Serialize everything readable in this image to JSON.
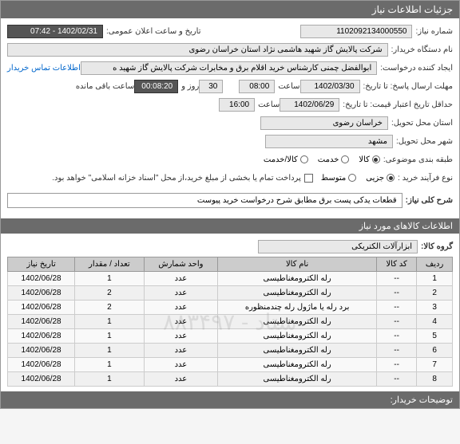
{
  "header": {
    "title": "جزئیات اطلاعات نیاز"
  },
  "fields": {
    "need_no_label": "شماره نیاز:",
    "need_no": "1102092134000550",
    "announce_label": "تاریخ و ساعت اعلان عمومی:",
    "announce_val": "1402/02/31 - 07:42",
    "buyer_label": "نام دستگاه خریدار:",
    "buyer_val": "شرکت پالایش گاز شهید هاشمی نژاد   استان خراسان رضوی",
    "creator_label": "ایجاد کننده درخواست:",
    "creator_val": "ابوالفضل چمنی کارشناس خرید اقلام برق و مخابرات شرکت پالایش گاز شهید ه",
    "contact_link": "اطلاعات تماس خریدار",
    "deadline_label": "مهلت ارسال پاسخ: تا تاریخ:",
    "deadline_date": "1402/03/30",
    "time_label": "ساعت",
    "deadline_time": "08:00",
    "day_label": "روز و",
    "days_val": "30",
    "remain_time": "00:08:20",
    "remain_label": "ساعت باقی مانده",
    "credit_label": "حداقل تاریخ اعتبار قیمت: تا تاریخ:",
    "credit_date": "1402/06/29",
    "credit_time": "16:00",
    "province_label": "استان محل تحویل:",
    "province_val": "خراسان رضوی",
    "city_label": "شهر محل تحویل:",
    "city_val": "مشهد",
    "subject_class_label": "طبقه بندی موضوعی:",
    "goods": "کالا",
    "service": "خدمت",
    "goods_service": "کالا/خدمت",
    "buy_type_label": "نوع فرآیند خرید :",
    "small": "جزیی",
    "medium": "متوسط",
    "payment_note": "پرداخت تمام یا بخشی از مبلغ خرید،از محل \"اسناد خزانه اسلامی\" خواهد بود.",
    "need_title_label": "شرح کلی نیاز:",
    "need_title_val": "قطعات یدکی پست برق مطابق شرح درخواست خرید پیوست",
    "items_header": "اطلاعات کالاهای مورد نیاز",
    "group_label": "گروه کالا:",
    "group_val": "ابزارآلات الکتریکی",
    "watermark": "ستاد - ۸۸۳۴۹۷",
    "buyer_notes": "توضیحات خریدار:"
  },
  "table": {
    "columns": [
      "ردیف",
      "کد کالا",
      "نام کالا",
      "واحد شمارش",
      "تعداد / مقدار",
      "تاریخ نیاز"
    ],
    "rows": [
      [
        "1",
        "--",
        "رله الکترومغناطیسی",
        "عدد",
        "1",
        "1402/06/28"
      ],
      [
        "2",
        "--",
        "رله الکترومغناطیسی",
        "عدد",
        "2",
        "1402/06/28"
      ],
      [
        "3",
        "--",
        "برد رله یا ماژول رله چندمنظوره",
        "عدد",
        "2",
        "1402/06/28"
      ],
      [
        "4",
        "--",
        "رله الکترومغناطیسی",
        "عدد",
        "1",
        "1402/06/28"
      ],
      [
        "5",
        "--",
        "رله الکترومغناطیسی",
        "عدد",
        "1",
        "1402/06/28"
      ],
      [
        "6",
        "--",
        "رله الکترومغناطیسی",
        "عدد",
        "1",
        "1402/06/28"
      ],
      [
        "7",
        "--",
        "رله الکترومغناطیسی",
        "عدد",
        "1",
        "1402/06/28"
      ],
      [
        "8",
        "--",
        "رله الکترومغناطیسی",
        "عدد",
        "1",
        "1402/06/28"
      ]
    ]
  }
}
